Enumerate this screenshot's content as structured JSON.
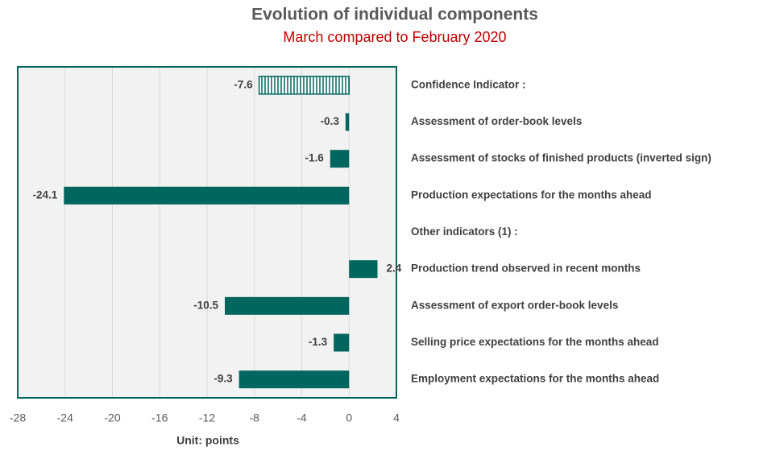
{
  "chart_data": {
    "type": "hbar",
    "title": "Evolution of individual components",
    "subtitle": "March compared to February 2020",
    "xlabel": "Unit: points",
    "categories": [
      "Confidence Indicator   :",
      "Assessment of order-book levels",
      "Assessment of stocks of finished products (inverted sign)",
      "Production expectations for the months ahead",
      "Other indicators (1) :",
      "Production trend observed in recent months",
      "Assessment of export order-book levels",
      "Selling price expectations for the months ahead",
      "Employment expectations for the months ahead"
    ],
    "values": [
      -7.6,
      -0.3,
      -1.6,
      -24.1,
      null,
      2.4,
      -10.5,
      -1.3,
      -9.3
    ],
    "hatched": [
      true,
      false,
      false,
      false,
      false,
      false,
      false,
      false,
      false
    ],
    "color": "#00665e",
    "xlim": [
      -28,
      4
    ],
    "xticks": [
      -28,
      -24,
      -20,
      -16,
      -12,
      -8,
      -4,
      0,
      4
    ],
    "grid": true
  }
}
